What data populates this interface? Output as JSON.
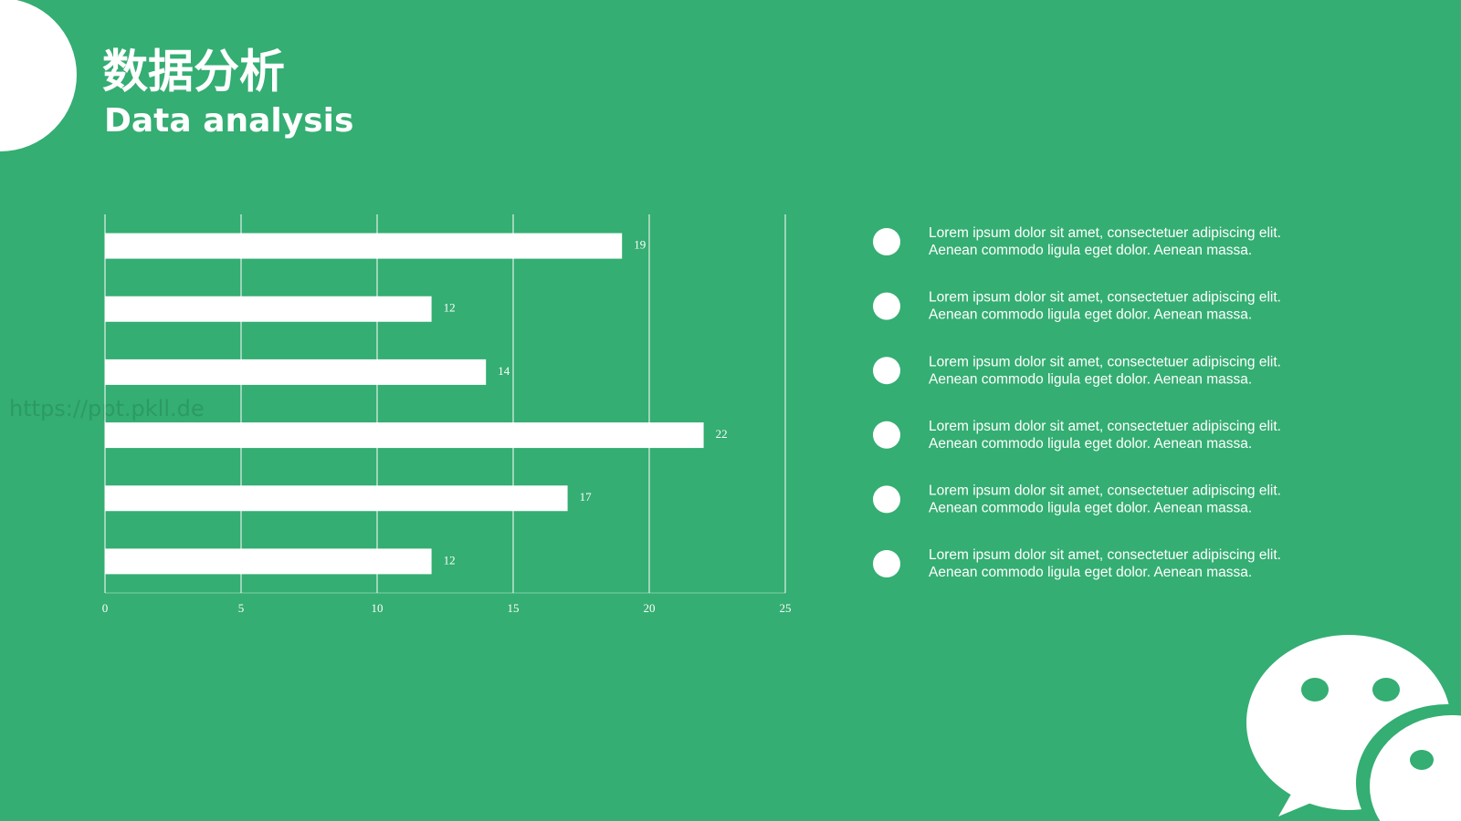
{
  "header": {
    "title": "数据分析",
    "subtitle": "Data analysis"
  },
  "watermark": "https://ppt.pkll.de",
  "chart_data": {
    "type": "hbar",
    "categories": [
      null,
      null,
      null,
      null,
      null,
      null
    ],
    "values": [
      19,
      12,
      14,
      22,
      17,
      12
    ],
    "color": "#ffffff",
    "xlim": [
      0,
      25
    ],
    "xticks": [
      0,
      5,
      10,
      15,
      20,
      25
    ],
    "grid": true
  },
  "bullets": [
    {
      "lines": [
        "Lorem ipsum dolor sit amet, consectetuer adipiscing elit.",
        "Aenean commodo ligula eget dolor. Aenean massa."
      ]
    },
    {
      "lines": [
        "Lorem ipsum dolor sit amet, consectetuer adipiscing elit.",
        "Aenean commodo ligula eget dolor. Aenean massa."
      ]
    },
    {
      "lines": [
        "Lorem ipsum dolor sit amet, consectetuer adipiscing elit.",
        "Aenean commodo ligula eget dolor. Aenean massa."
      ]
    },
    {
      "lines": [
        "Lorem ipsum dolor sit amet, consectetuer adipiscing elit.",
        "Aenean commodo ligula eget dolor. Aenean massa."
      ]
    },
    {
      "lines": [
        "Lorem ipsum dolor sit amet, consectetuer adipiscing elit.",
        "Aenean commodo ligula eget dolor. Aenean massa."
      ]
    },
    {
      "lines": [
        "Lorem ipsum dolor sit amet, consectetuer adipiscing elit.",
        "Aenean commodo ligula eget dolor. Aenean massa."
      ]
    }
  ]
}
